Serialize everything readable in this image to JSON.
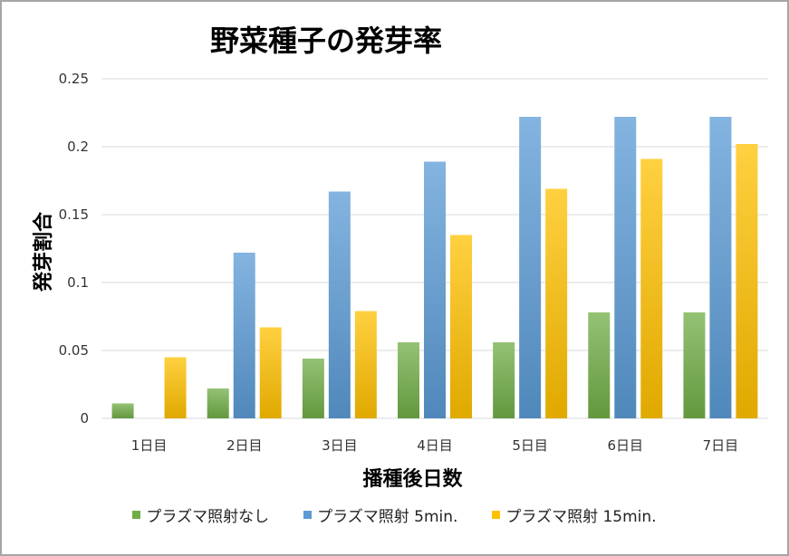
{
  "chart_data": {
    "type": "bar",
    "title": "野菜種子の発芽率",
    "xlabel": "播種後日数",
    "ylabel": "発芽割合",
    "categories": [
      "1日目",
      "2日目",
      "3日目",
      "4日目",
      "5日目",
      "6日目",
      "7日目"
    ],
    "ylim": [
      0,
      0.25
    ],
    "yticks": [
      0,
      0.05,
      0.1,
      0.15,
      0.2,
      0.25
    ],
    "ytick_labels": [
      "0",
      "0.05",
      "0.1",
      "0.15",
      "0.2",
      "0.25"
    ],
    "grid": true,
    "legend_position": "bottom",
    "series": [
      {
        "name": "プラズマ照射なし",
        "color": "#70ad47",
        "values": [
          0.011,
          0.022,
          0.044,
          0.056,
          0.056,
          0.078,
          0.078
        ]
      },
      {
        "name": "プラズマ照射 5min.",
        "color": "#5b9bd5",
        "values": [
          0,
          0.122,
          0.167,
          0.189,
          0.222,
          0.222,
          0.222
        ]
      },
      {
        "name": "プラズマ照射 15min.",
        "color": "#ffc000",
        "values": [
          0.045,
          0.067,
          0.079,
          0.135,
          0.169,
          0.191,
          0.202
        ]
      }
    ]
  }
}
